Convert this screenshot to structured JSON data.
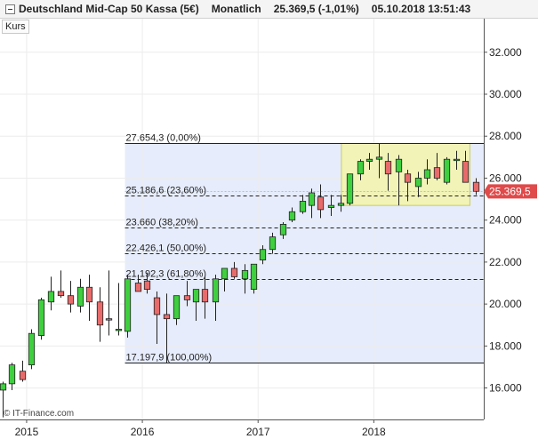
{
  "header": {
    "instrument": "Deutschland Mid-Cap 50 Kassa (5€)",
    "period": "Monatlich",
    "price": "25.369,5 (-1,01%)",
    "datetime": "05.10.2018 13:51:43"
  },
  "kurs_label": "Kurs",
  "watermark": "© IT-Finance.com",
  "current_price_label": "25.369,5",
  "colors": {
    "up": "#3fcf3f",
    "down": "#e86b6b",
    "fib_zone": "#e6ecfb",
    "highlight_fill": "#f4f4b0",
    "highlight_border": "#c9c94a",
    "price_tag": "#e04a4a"
  },
  "chart_data": {
    "type": "candlestick",
    "ylim": [
      14500,
      33600
    ],
    "y_ticks": [
      16000,
      18000,
      20000,
      22000,
      24000,
      26000,
      28000,
      30000,
      32000
    ],
    "y_tick_labels": [
      "16.000",
      "18.000",
      "20.000",
      "22.000",
      "24.000",
      "26.000",
      "28.000",
      "30.000",
      "32.000"
    ],
    "x_tick_labels": [
      {
        "label": "2015",
        "at": 2015.0
      },
      {
        "label": "2016",
        "at": 2016.0
      },
      {
        "label": "2017",
        "at": 2017.0
      },
      {
        "label": "2018",
        "at": 2018.0
      }
    ],
    "x_range": [
      2014.77,
      2018.95
    ],
    "candles": [
      {
        "t": 2014.79,
        "o": 15900,
        "h": 16300,
        "l": 14600,
        "c": 16200
      },
      {
        "t": 2014.87,
        "o": 16200,
        "h": 17200,
        "l": 15900,
        "c": 17100
      },
      {
        "t": 2014.96,
        "o": 16800,
        "h": 17300,
        "l": 16300,
        "c": 16400
      },
      {
        "t": 2015.04,
        "o": 17100,
        "h": 18800,
        "l": 16900,
        "c": 18600
      },
      {
        "t": 2015.12,
        "o": 18500,
        "h": 20300,
        "l": 18300,
        "c": 20200
      },
      {
        "t": 2015.21,
        "o": 20100,
        "h": 21300,
        "l": 19700,
        "c": 20600
      },
      {
        "t": 2015.29,
        "o": 20600,
        "h": 21600,
        "l": 20300,
        "c": 20400
      },
      {
        "t": 2015.38,
        "o": 20400,
        "h": 21100,
        "l": 19600,
        "c": 20000
      },
      {
        "t": 2015.46,
        "o": 19900,
        "h": 21200,
        "l": 19600,
        "c": 20800
      },
      {
        "t": 2015.54,
        "o": 20800,
        "h": 21400,
        "l": 19200,
        "c": 20100
      },
      {
        "t": 2015.63,
        "o": 20100,
        "h": 20800,
        "l": 18200,
        "c": 19000
      },
      {
        "t": 2015.71,
        "o": 19300,
        "h": 21600,
        "l": 18500,
        "c": 19300
      },
      {
        "t": 2015.79,
        "o": 18800,
        "h": 21000,
        "l": 18500,
        "c": 18800
      },
      {
        "t": 2015.87,
        "o": 18700,
        "h": 21400,
        "l": 18400,
        "c": 21200
      },
      {
        "t": 2015.96,
        "o": 21000,
        "h": 21400,
        "l": 20700,
        "c": 20600
      },
      {
        "t": 2016.04,
        "o": 21100,
        "h": 21500,
        "l": 20500,
        "c": 20700
      },
      {
        "t": 2016.12,
        "o": 20300,
        "h": 20600,
        "l": 18100,
        "c": 19500
      },
      {
        "t": 2016.21,
        "o": 19500,
        "h": 20500,
        "l": 17200,
        "c": 19300
      },
      {
        "t": 2016.29,
        "o": 19300,
        "h": 20400,
        "l": 19000,
        "c": 20400
      },
      {
        "t": 2016.38,
        "o": 20400,
        "h": 21100,
        "l": 19900,
        "c": 20200
      },
      {
        "t": 2016.46,
        "o": 20100,
        "h": 20700,
        "l": 19200,
        "c": 20700
      },
      {
        "t": 2016.54,
        "o": 20700,
        "h": 21300,
        "l": 19300,
        "c": 20100
      },
      {
        "t": 2016.63,
        "o": 20100,
        "h": 21400,
        "l": 19200,
        "c": 21200
      },
      {
        "t": 2016.71,
        "o": 21200,
        "h": 21700,
        "l": 20600,
        "c": 21700
      },
      {
        "t": 2016.79,
        "o": 21700,
        "h": 22000,
        "l": 21200,
        "c": 21300
      },
      {
        "t": 2016.88,
        "o": 21200,
        "h": 21900,
        "l": 20500,
        "c": 21600
      },
      {
        "t": 2016.96,
        "o": 20700,
        "h": 21900,
        "l": 20500,
        "c": 21900
      },
      {
        "t": 2017.04,
        "o": 22100,
        "h": 22800,
        "l": 21900,
        "c": 22600
      },
      {
        "t": 2017.12,
        "o": 22600,
        "h": 23400,
        "l": 22400,
        "c": 23200
      },
      {
        "t": 2017.21,
        "o": 23300,
        "h": 23900,
        "l": 23100,
        "c": 23800
      },
      {
        "t": 2017.29,
        "o": 24000,
        "h": 24600,
        "l": 23900,
        "c": 24400
      },
      {
        "t": 2017.38,
        "o": 24400,
        "h": 25200,
        "l": 24300,
        "c": 24900
      },
      {
        "t": 2017.46,
        "o": 24700,
        "h": 25500,
        "l": 24100,
        "c": 25300
      },
      {
        "t": 2017.54,
        "o": 25100,
        "h": 25700,
        "l": 24100,
        "c": 24500
      },
      {
        "t": 2017.63,
        "o": 24600,
        "h": 25200,
        "l": 24200,
        "c": 24700
      },
      {
        "t": 2017.71,
        "o": 24700,
        "h": 25200,
        "l": 24400,
        "c": 24800
      },
      {
        "t": 2017.79,
        "o": 24800,
        "h": 26200,
        "l": 24700,
        "c": 26200
      },
      {
        "t": 2017.88,
        "o": 26200,
        "h": 26900,
        "l": 25900,
        "c": 26800
      },
      {
        "t": 2017.96,
        "o": 26800,
        "h": 27200,
        "l": 26400,
        "c": 26900
      },
      {
        "t": 2018.04,
        "o": 26900,
        "h": 27654,
        "l": 26000,
        "c": 27000
      },
      {
        "t": 2018.12,
        "o": 26800,
        "h": 27200,
        "l": 25400,
        "c": 26200
      },
      {
        "t": 2018.21,
        "o": 26300,
        "h": 27100,
        "l": 24700,
        "c": 26900
      },
      {
        "t": 2018.29,
        "o": 26200,
        "h": 26400,
        "l": 24900,
        "c": 25800
      },
      {
        "t": 2018.38,
        "o": 25600,
        "h": 26300,
        "l": 25100,
        "c": 26000
      },
      {
        "t": 2018.46,
        "o": 26000,
        "h": 26900,
        "l": 25700,
        "c": 26400
      },
      {
        "t": 2018.54,
        "o": 26500,
        "h": 27200,
        "l": 25900,
        "c": 26000
      },
      {
        "t": 2018.63,
        "o": 25800,
        "h": 27000,
        "l": 25700,
        "c": 26900
      },
      {
        "t": 2018.71,
        "o": 26900,
        "h": 27300,
        "l": 26400,
        "c": 26900
      },
      {
        "t": 2018.79,
        "o": 26800,
        "h": 27300,
        "l": 25900,
        "c": 25800
      },
      {
        "t": 2018.88,
        "o": 25800,
        "h": 26000,
        "l": 25200,
        "c": 25370
      }
    ],
    "fibonacci": {
      "t_start": 2015.85,
      "high": 27654.3,
      "low": 17197.9,
      "levels": [
        {
          "value": 27654.3,
          "label": "27.654,3 (0,00%)",
          "style": "solid"
        },
        {
          "value": 25186.6,
          "label": "25.186,6 (23,60%)",
          "style": "dashed"
        },
        {
          "value": 23660,
          "label": "23.660 (38,20%)",
          "style": "dashed"
        },
        {
          "value": 22426.1,
          "label": "22.426,1 (50,00%)",
          "style": "dashed"
        },
        {
          "value": 21192.3,
          "label": "21.192,3 (61,80%)",
          "style": "dashed"
        },
        {
          "value": 17197.9,
          "label": "17.197,9 (100,00%)",
          "style": "solid"
        }
      ]
    },
    "highlight_box": {
      "t_start": 2017.72,
      "t_end": 2018.83,
      "y_low": 24700,
      "y_high": 27650
    },
    "current_price": 25369.5
  }
}
